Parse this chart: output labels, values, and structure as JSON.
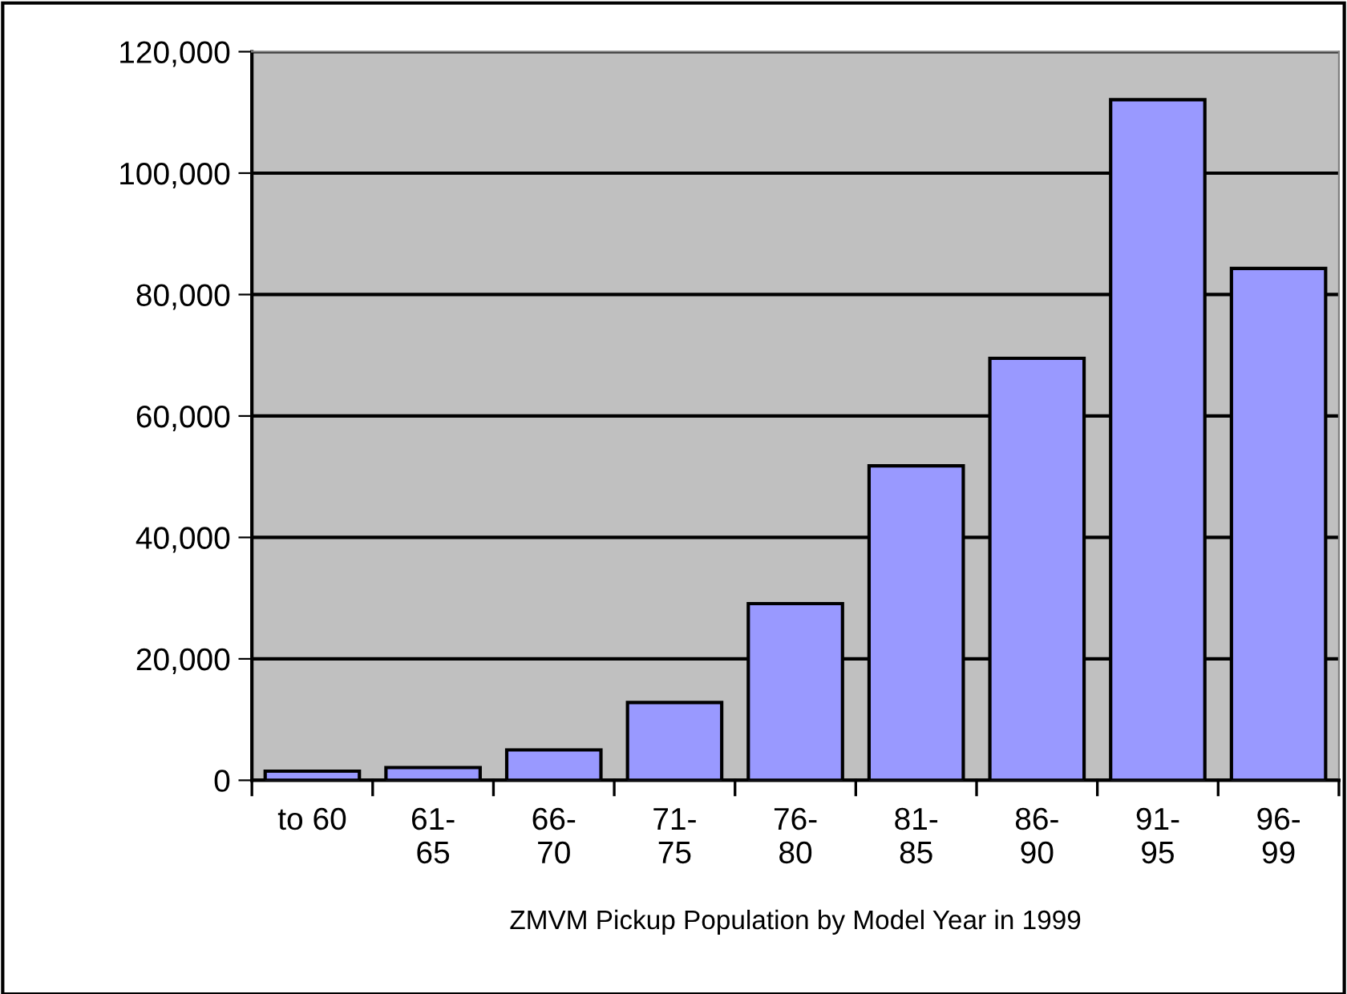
{
  "chart_data": {
    "type": "bar",
    "xlabel": "ZMVM Pickup Population by Model Year in 1999",
    "categories": [
      "to 60",
      "61-\n65",
      "66-\n70",
      "71-\n75",
      "76-\n80",
      "81-\n85",
      "86-\n90",
      "91-\n95",
      "96-\n99"
    ],
    "values": [
      1500,
      2100,
      5000,
      12800,
      29100,
      51800,
      69500,
      112100,
      84300
    ],
    "color": "#9999ff",
    "ylim": [
      0,
      120000
    ],
    "yticks": [
      {
        "value": 0,
        "label": "0"
      },
      {
        "value": 20000,
        "label": "20,000"
      },
      {
        "value": 40000,
        "label": "40,000"
      },
      {
        "value": 60000,
        "label": "60,000"
      },
      {
        "value": 80000,
        "label": "80,000"
      },
      {
        "value": 100000,
        "label": "100,000"
      },
      {
        "value": 120000,
        "label": "120,000"
      }
    ],
    "grid": "y"
  }
}
